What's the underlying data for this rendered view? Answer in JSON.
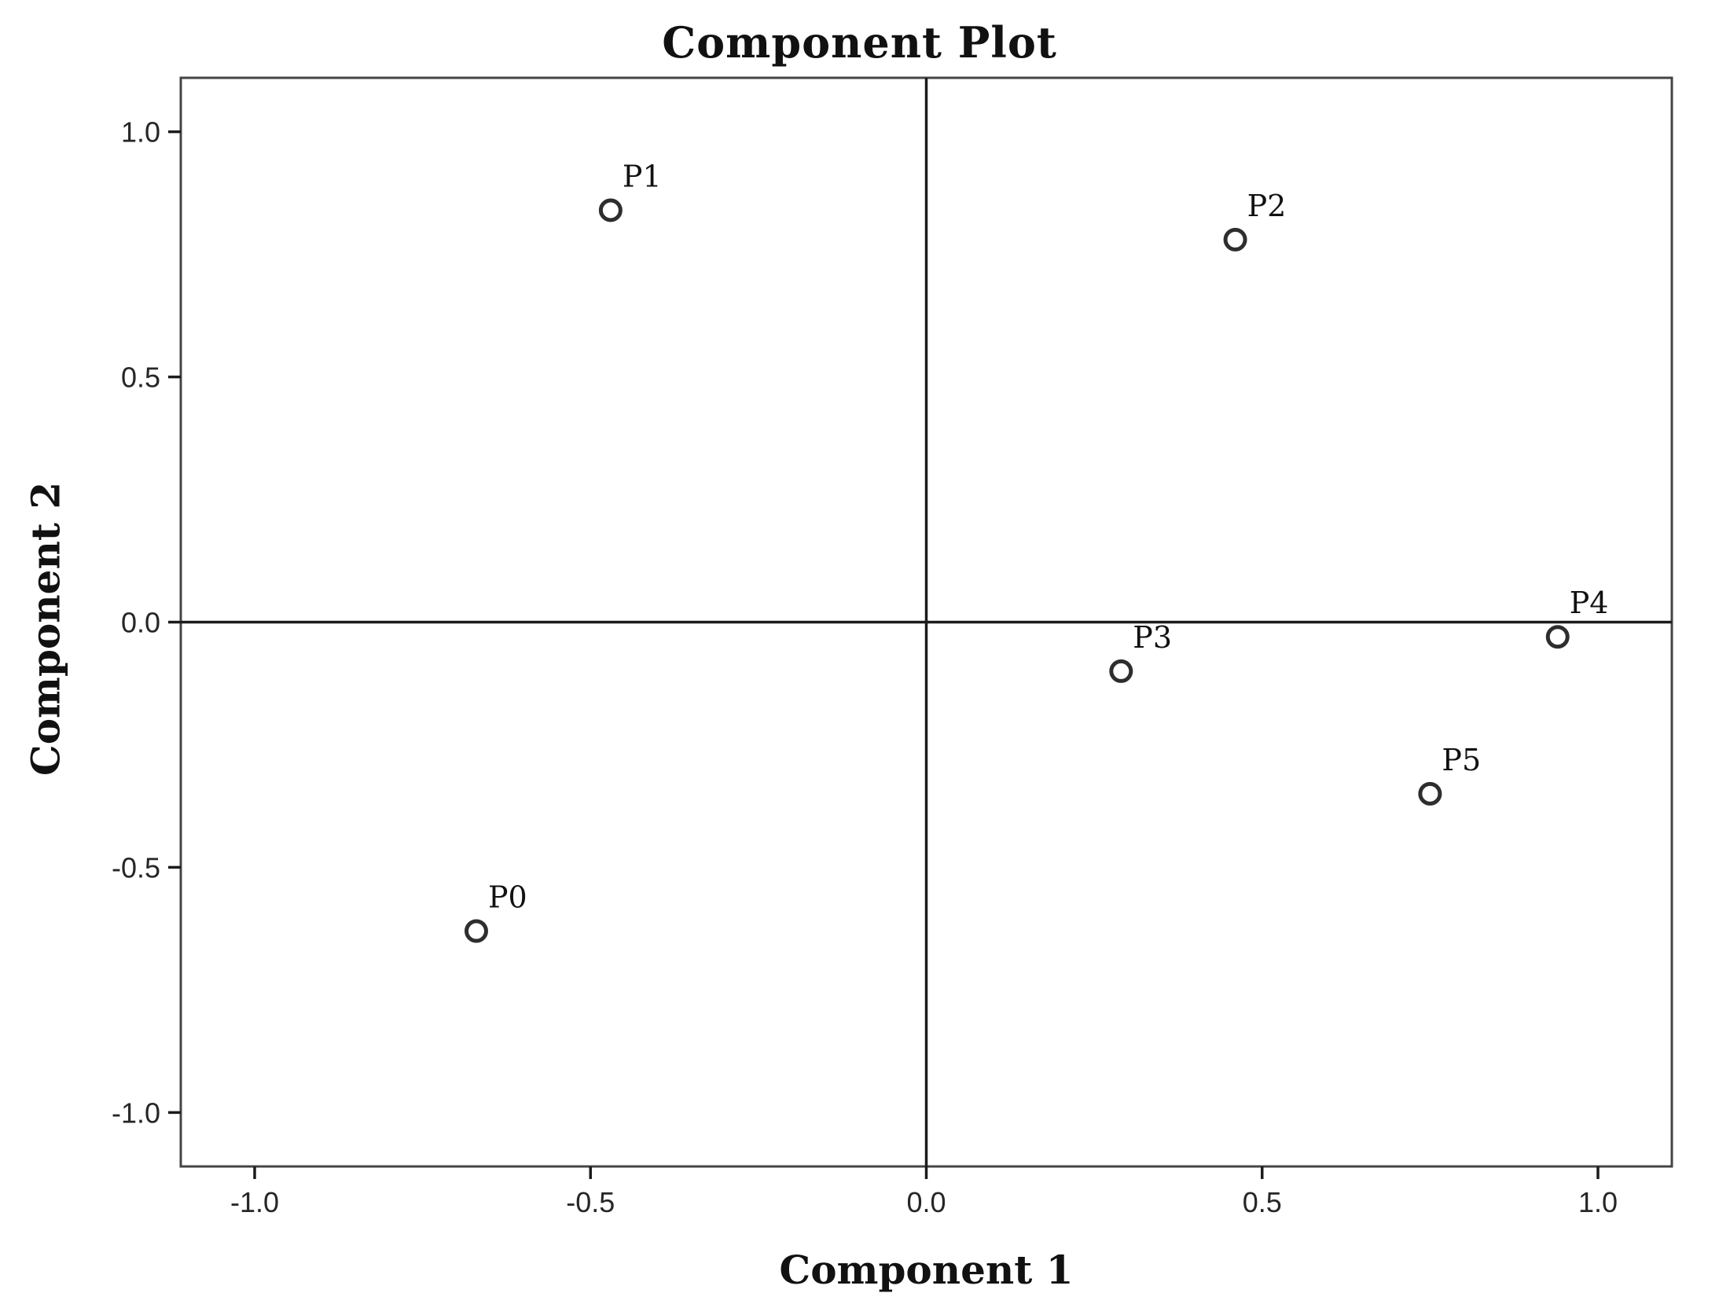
{
  "page": {
    "background": "#ffffff"
  },
  "chart_data": {
    "type": "scatter",
    "title": "Component Plot",
    "xlabel": "Component 1",
    "ylabel": "Component 2",
    "xlim": [
      -1.11,
      1.11
    ],
    "ylim": [
      -1.11,
      1.11
    ],
    "xticks": [
      -1.0,
      -0.5,
      0.0,
      0.5,
      1.0
    ],
    "yticks": [
      -1.0,
      -0.5,
      0.0,
      0.5,
      1.0
    ],
    "xtick_labels": [
      "-1.0",
      "-0.5",
      "0.0",
      "0.5",
      "1.0"
    ],
    "ytick_labels": [
      "-1.0",
      "-0.5",
      "0.0",
      "0.5",
      "1.0"
    ],
    "grid": false,
    "legend": false,
    "reference_lines": {
      "vertical_at_x": 0.0,
      "horizontal_at_y": 0.0
    },
    "marker": {
      "shape": "open-circle",
      "fill": "#ffffff"
    },
    "points": [
      {
        "label": "P0",
        "x": -0.67,
        "y": -0.63
      },
      {
        "label": "P1",
        "x": -0.47,
        "y": 0.84
      },
      {
        "label": "P2",
        "x": 0.46,
        "y": 0.78
      },
      {
        "label": "P3",
        "x": 0.29,
        "y": -0.1
      },
      {
        "label": "P4",
        "x": 0.94,
        "y": -0.03
      },
      {
        "label": "P5",
        "x": 0.75,
        "y": -0.35
      }
    ],
    "colors": {
      "plot_border": "#444444",
      "axis_line": "#1c1c1c",
      "tick_text": "#262626",
      "point_stroke": "#2e2e2e",
      "label_text": "#111111"
    }
  }
}
